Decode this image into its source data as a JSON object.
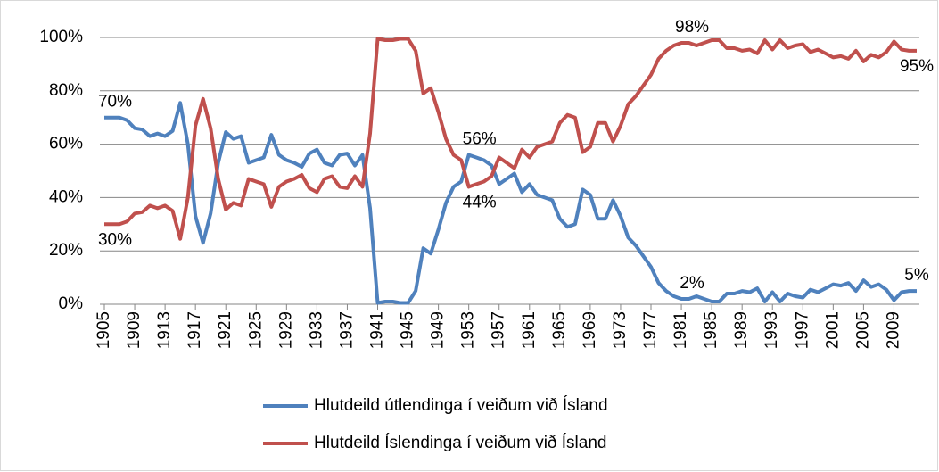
{
  "chart_data": {
    "type": "line",
    "x": [
      1905,
      1906,
      1907,
      1908,
      1909,
      1910,
      1911,
      1912,
      1913,
      1914,
      1915,
      1916,
      1917,
      1918,
      1919,
      1920,
      1921,
      1922,
      1923,
      1924,
      1925,
      1926,
      1927,
      1928,
      1929,
      1930,
      1931,
      1932,
      1933,
      1934,
      1935,
      1936,
      1937,
      1938,
      1939,
      1940,
      1941,
      1942,
      1943,
      1944,
      1945,
      1946,
      1947,
      1948,
      1949,
      1950,
      1951,
      1952,
      1953,
      1954,
      1955,
      1956,
      1957,
      1958,
      1959,
      1960,
      1961,
      1962,
      1963,
      1964,
      1965,
      1966,
      1967,
      1968,
      1969,
      1970,
      1971,
      1972,
      1973,
      1974,
      1975,
      1976,
      1977,
      1978,
      1979,
      1980,
      1981,
      1982,
      1983,
      1984,
      1985,
      1986,
      1987,
      1988,
      1989,
      1990,
      1991,
      1992,
      1993,
      1994,
      1995,
      1996,
      1997,
      1998,
      1999,
      2000,
      2001,
      2002,
      2003,
      2004,
      2005,
      2006,
      2007,
      2008,
      2009,
      2010,
      2011,
      2012
    ],
    "xlim": [
      1905,
      2012
    ],
    "xticks": [
      1905,
      1909,
      1913,
      1917,
      1921,
      1925,
      1929,
      1933,
      1937,
      1941,
      1945,
      1949,
      1953,
      1957,
      1961,
      1965,
      1969,
      1973,
      1977,
      1981,
      1985,
      1989,
      1993,
      1997,
      2001,
      2005,
      2009
    ],
    "ylim": [
      0,
      100
    ],
    "yticks": [
      {
        "value": 0,
        "label": "0%"
      },
      {
        "value": 20,
        "label": "20%"
      },
      {
        "value": 40,
        "label": "40%"
      },
      {
        "value": 60,
        "label": "60%"
      },
      {
        "value": 80,
        "label": "80%"
      },
      {
        "value": 100,
        "label": "100%"
      }
    ],
    "grid": true,
    "legend": "bottom",
    "series": [
      {
        "name": "Hlutdeild útlendinga í veiðum við Ísland",
        "color": "#4f81bd",
        "values": [
          70,
          70,
          70,
          69,
          66,
          65.5,
          63,
          64,
          63,
          65,
          75.5,
          60,
          33,
          23,
          34,
          53,
          64.5,
          62,
          63,
          53,
          54,
          55,
          63.5,
          56,
          54,
          53,
          51.5,
          56.5,
          58,
          53,
          52,
          56,
          56.5,
          52,
          56,
          36,
          0.5,
          1,
          1,
          0.5,
          0.5,
          5,
          21,
          19,
          28,
          38,
          44,
          46,
          56,
          55,
          54,
          52,
          45,
          47,
          49,
          42,
          45,
          41,
          40,
          39,
          32,
          29,
          30,
          43,
          41,
          32,
          32,
          39,
          33,
          25,
          22,
          18,
          14,
          8,
          5,
          3,
          2,
          2,
          3,
          2,
          1,
          1,
          4,
          4,
          5,
          4.5,
          6,
          1,
          4.5,
          1,
          4,
          3,
          2.5,
          5.5,
          4.5,
          6,
          7.5,
          7,
          8,
          5,
          9,
          6.5,
          7.5,
          5.5,
          1.5,
          4.5,
          5,
          5
        ],
        "value_labels": [
          "70%",
          null,
          null,
          null,
          null,
          null,
          null,
          null,
          null,
          null,
          null,
          null,
          null,
          null,
          null,
          null,
          null,
          null,
          null,
          null,
          null,
          null,
          null,
          null,
          null,
          null,
          null,
          null,
          null,
          null,
          null,
          null,
          null,
          null,
          null,
          null,
          null,
          null,
          null,
          null,
          null,
          null,
          null,
          null,
          null,
          null,
          null,
          null,
          "56%",
          null,
          null,
          null,
          null,
          null,
          null,
          null,
          null,
          null,
          null,
          null,
          null,
          null,
          null,
          null,
          null,
          null,
          null,
          null,
          null,
          null,
          null,
          null,
          null,
          null,
          null,
          null,
          "2%",
          null,
          null,
          null,
          null,
          null,
          null,
          null,
          null,
          null,
          null,
          null,
          null,
          null,
          null,
          null,
          null,
          null,
          null,
          null,
          null,
          null,
          null,
          null,
          null,
          null,
          null,
          null,
          null,
          null,
          null,
          "5%"
        ]
      },
      {
        "name": "Hlutdeild Íslendinga í veiðum við Ísland",
        "color": "#c0504d",
        "values": [
          30,
          30,
          30,
          31,
          34,
          34.5,
          37,
          36,
          37,
          35,
          24.5,
          40,
          67,
          77,
          66,
          47,
          35.5,
          38,
          37,
          47,
          46,
          45,
          36.5,
          44,
          46,
          47,
          48.5,
          43.5,
          42,
          47,
          48,
          44,
          43.5,
          48,
          44,
          64,
          99.5,
          99,
          99,
          99.5,
          99.5,
          95,
          79,
          81,
          72,
          62,
          56,
          54,
          44,
          45,
          46,
          48,
          55,
          53,
          51,
          58,
          55,
          59,
          60,
          61,
          68,
          71,
          70,
          57,
          59,
          68,
          68,
          61,
          67,
          75,
          78,
          82,
          86,
          92,
          95,
          97,
          98,
          98,
          97,
          98,
          99,
          99,
          96,
          96,
          95,
          95.5,
          94,
          99,
          95.5,
          99,
          96,
          97,
          97.5,
          94.5,
          95.5,
          94,
          92.5,
          93,
          92,
          95,
          91,
          93.5,
          92.5,
          94.5,
          98.5,
          95.5,
          95,
          95
        ],
        "value_labels": [
          "30%",
          null,
          null,
          null,
          null,
          null,
          null,
          null,
          null,
          null,
          null,
          null,
          null,
          null,
          null,
          null,
          null,
          null,
          null,
          null,
          null,
          null,
          null,
          null,
          null,
          null,
          null,
          null,
          null,
          null,
          null,
          null,
          null,
          null,
          null,
          null,
          null,
          null,
          null,
          null,
          null,
          null,
          null,
          null,
          null,
          null,
          null,
          null,
          "44%",
          null,
          null,
          null,
          null,
          null,
          null,
          null,
          null,
          null,
          null,
          null,
          null,
          null,
          null,
          null,
          null,
          null,
          null,
          null,
          null,
          null,
          null,
          null,
          null,
          null,
          null,
          null,
          "98%",
          null,
          null,
          null,
          null,
          null,
          null,
          null,
          null,
          null,
          null,
          null,
          null,
          null,
          null,
          null,
          null,
          null,
          null,
          null,
          null,
          null,
          null,
          null,
          null,
          null,
          null,
          null,
          null,
          null,
          null,
          "95%"
        ]
      }
    ]
  }
}
